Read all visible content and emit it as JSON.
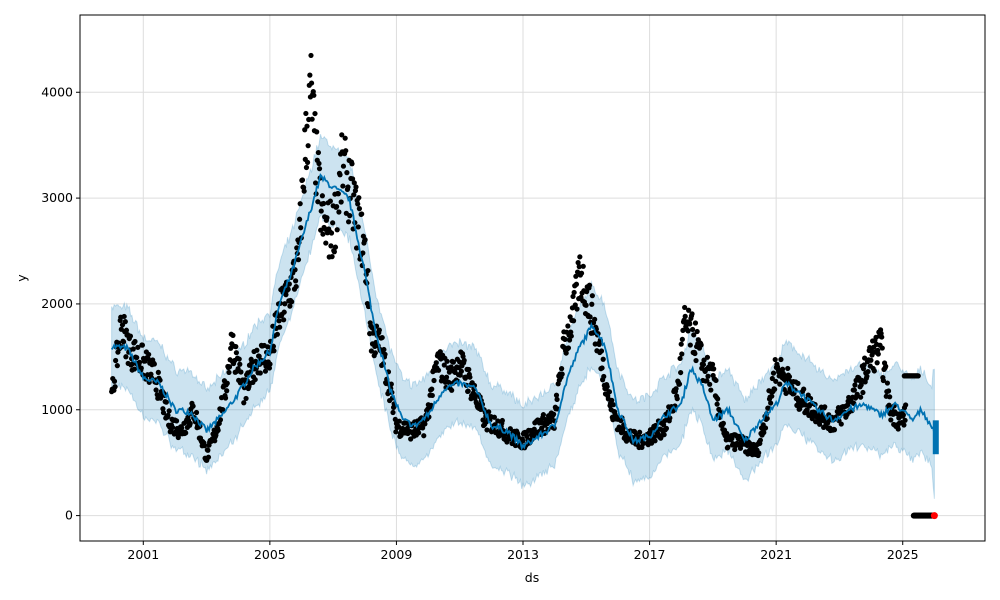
{
  "chart_data": {
    "type": "scatter",
    "title": "",
    "xlabel": "ds",
    "ylabel": "y",
    "xlim": [
      1999.0,
      2027.6
    ],
    "ylim": [
      -240,
      4730
    ],
    "x_ticks": [
      2001,
      2005,
      2009,
      2013,
      2017,
      2021,
      2025
    ],
    "x_tick_labels": [
      "2001",
      "2005",
      "2009",
      "2013",
      "2017",
      "2021",
      "2025"
    ],
    "y_ticks": [
      0,
      1000,
      2000,
      3000,
      4000
    ],
    "y_tick_labels": [
      "0",
      "1000",
      "2000",
      "3000",
      "4000"
    ],
    "grid": true,
    "colors": {
      "forecast": "#0072B2",
      "band": "#0072B2",
      "observed": "#000000",
      "recent": "#ff0000"
    },
    "forecast_yhat": [
      [
        2000.0,
        1600
      ],
      [
        2000.5,
        1580
      ],
      [
        2001.0,
        1300
      ],
      [
        2001.5,
        1250
      ],
      [
        2002.0,
        1000
      ],
      [
        2002.5,
        980
      ],
      [
        2003.0,
        800
      ],
      [
        2003.5,
        950
      ],
      [
        2004.0,
        1150
      ],
      [
        2004.5,
        1400
      ],
      [
        2005.0,
        1550
      ],
      [
        2005.3,
        2000
      ],
      [
        2005.7,
        2300
      ],
      [
        2006.2,
        2800
      ],
      [
        2006.6,
        3200
      ],
      [
        2007.0,
        3100
      ],
      [
        2007.5,
        3000
      ],
      [
        2008.0,
        2300
      ],
      [
        2008.3,
        1800
      ],
      [
        2008.8,
        1200
      ],
      [
        2009.2,
        900
      ],
      [
        2009.6,
        850
      ],
      [
        2010.0,
        950
      ],
      [
        2010.5,
        1200
      ],
      [
        2011.0,
        1250
      ],
      [
        2011.5,
        1200
      ],
      [
        2012.0,
        850
      ],
      [
        2012.5,
        800
      ],
      [
        2013.0,
        650
      ],
      [
        2013.5,
        750
      ],
      [
        2014.0,
        850
      ],
      [
        2014.4,
        1300
      ],
      [
        2014.8,
        1600
      ],
      [
        2015.2,
        1800
      ],
      [
        2015.6,
        1600
      ],
      [
        2016.0,
        1000
      ],
      [
        2016.5,
        700
      ],
      [
        2017.0,
        750
      ],
      [
        2017.5,
        950
      ],
      [
        2018.0,
        1050
      ],
      [
        2018.3,
        1400
      ],
      [
        2018.7,
        1200
      ],
      [
        2019.0,
        900
      ],
      [
        2019.5,
        1000
      ],
      [
        2020.0,
        700
      ],
      [
        2020.5,
        900
      ],
      [
        2021.0,
        1050
      ],
      [
        2021.3,
        1250
      ],
      [
        2021.8,
        1150
      ],
      [
        2022.3,
        1000
      ],
      [
        2022.8,
        900
      ],
      [
        2023.3,
        1000
      ],
      [
        2023.8,
        1050
      ],
      [
        2024.3,
        950
      ],
      [
        2024.8,
        1050
      ],
      [
        2025.3,
        900
      ],
      [
        2025.6,
        1000
      ],
      [
        2026.0,
        800
      ]
    ],
    "forecast_interval_halfwidth": 380,
    "observed": [
      [
        2000.0,
        1100
      ],
      [
        2000.3,
        1800
      ],
      [
        2000.6,
        1550
      ],
      [
        2001.0,
        1450
      ],
      [
        2001.4,
        1300
      ],
      [
        2001.8,
        900
      ],
      [
        2002.2,
        800
      ],
      [
        2002.6,
        1000
      ],
      [
        2003.0,
        550
      ],
      [
        2003.3,
        800
      ],
      [
        2003.6,
        1200
      ],
      [
        2003.8,
        1650
      ],
      [
        2004.2,
        1150
      ],
      [
        2004.6,
        1500
      ],
      [
        2005.0,
        1500
      ],
      [
        2005.3,
        1900
      ],
      [
        2005.6,
        2100
      ],
      [
        2005.9,
        2400
      ],
      [
        2006.1,
        3400
      ],
      [
        2006.3,
        4000
      ],
      [
        2006.5,
        3200
      ],
      [
        2006.7,
        2700
      ],
      [
        2007.0,
        2700
      ],
      [
        2007.3,
        3300
      ],
      [
        2007.6,
        3000
      ],
      [
        2008.0,
        2500
      ],
      [
        2008.2,
        1700
      ],
      [
        2008.5,
        1600
      ],
      [
        2008.8,
        1200
      ],
      [
        2009.0,
        850
      ],
      [
        2009.5,
        800
      ],
      [
        2009.9,
        850
      ],
      [
        2010.3,
        1450
      ],
      [
        2010.7,
        1300
      ],
      [
        2011.0,
        1450
      ],
      [
        2011.4,
        1200
      ],
      [
        2011.8,
        900
      ],
      [
        2012.2,
        850
      ],
      [
        2012.6,
        750
      ],
      [
        2013.0,
        700
      ],
      [
        2013.5,
        850
      ],
      [
        2014.0,
        900
      ],
      [
        2014.3,
        1600
      ],
      [
        2014.6,
        1900
      ],
      [
        2014.8,
        2300
      ],
      [
        2015.1,
        2000
      ],
      [
        2015.4,
        1600
      ],
      [
        2015.8,
        1000
      ],
      [
        2016.2,
        800
      ],
      [
        2016.6,
        700
      ],
      [
        2017.0,
        750
      ],
      [
        2017.5,
        850
      ],
      [
        2017.9,
        1200
      ],
      [
        2018.1,
        1800
      ],
      [
        2018.4,
        1700
      ],
      [
        2018.7,
        1400
      ],
      [
        2019.0,
        1300
      ],
      [
        2019.4,
        700
      ],
      [
        2019.8,
        700
      ],
      [
        2020.1,
        650
      ],
      [
        2020.4,
        600
      ],
      [
        2020.8,
        1100
      ],
      [
        2021.0,
        1400
      ],
      [
        2021.3,
        1300
      ],
      [
        2021.6,
        1150
      ],
      [
        2022.0,
        1050
      ],
      [
        2022.4,
        950
      ],
      [
        2022.8,
        880
      ],
      [
        2023.2,
        1000
      ],
      [
        2023.6,
        1200
      ],
      [
        2024.0,
        1500
      ],
      [
        2024.3,
        1600
      ],
      [
        2024.6,
        1000
      ],
      [
        2024.9,
        900
      ],
      [
        2025.1,
        950
      ]
    ],
    "observed_recent_block": {
      "x_range": [
        2025.05,
        2025.5
      ],
      "value": 1320
    },
    "zero_values": {
      "x_range": [
        2025.35,
        2026.0
      ],
      "value": 0
    },
    "recent_highlight": {
      "x": 2026.0,
      "value": 0
    }
  }
}
